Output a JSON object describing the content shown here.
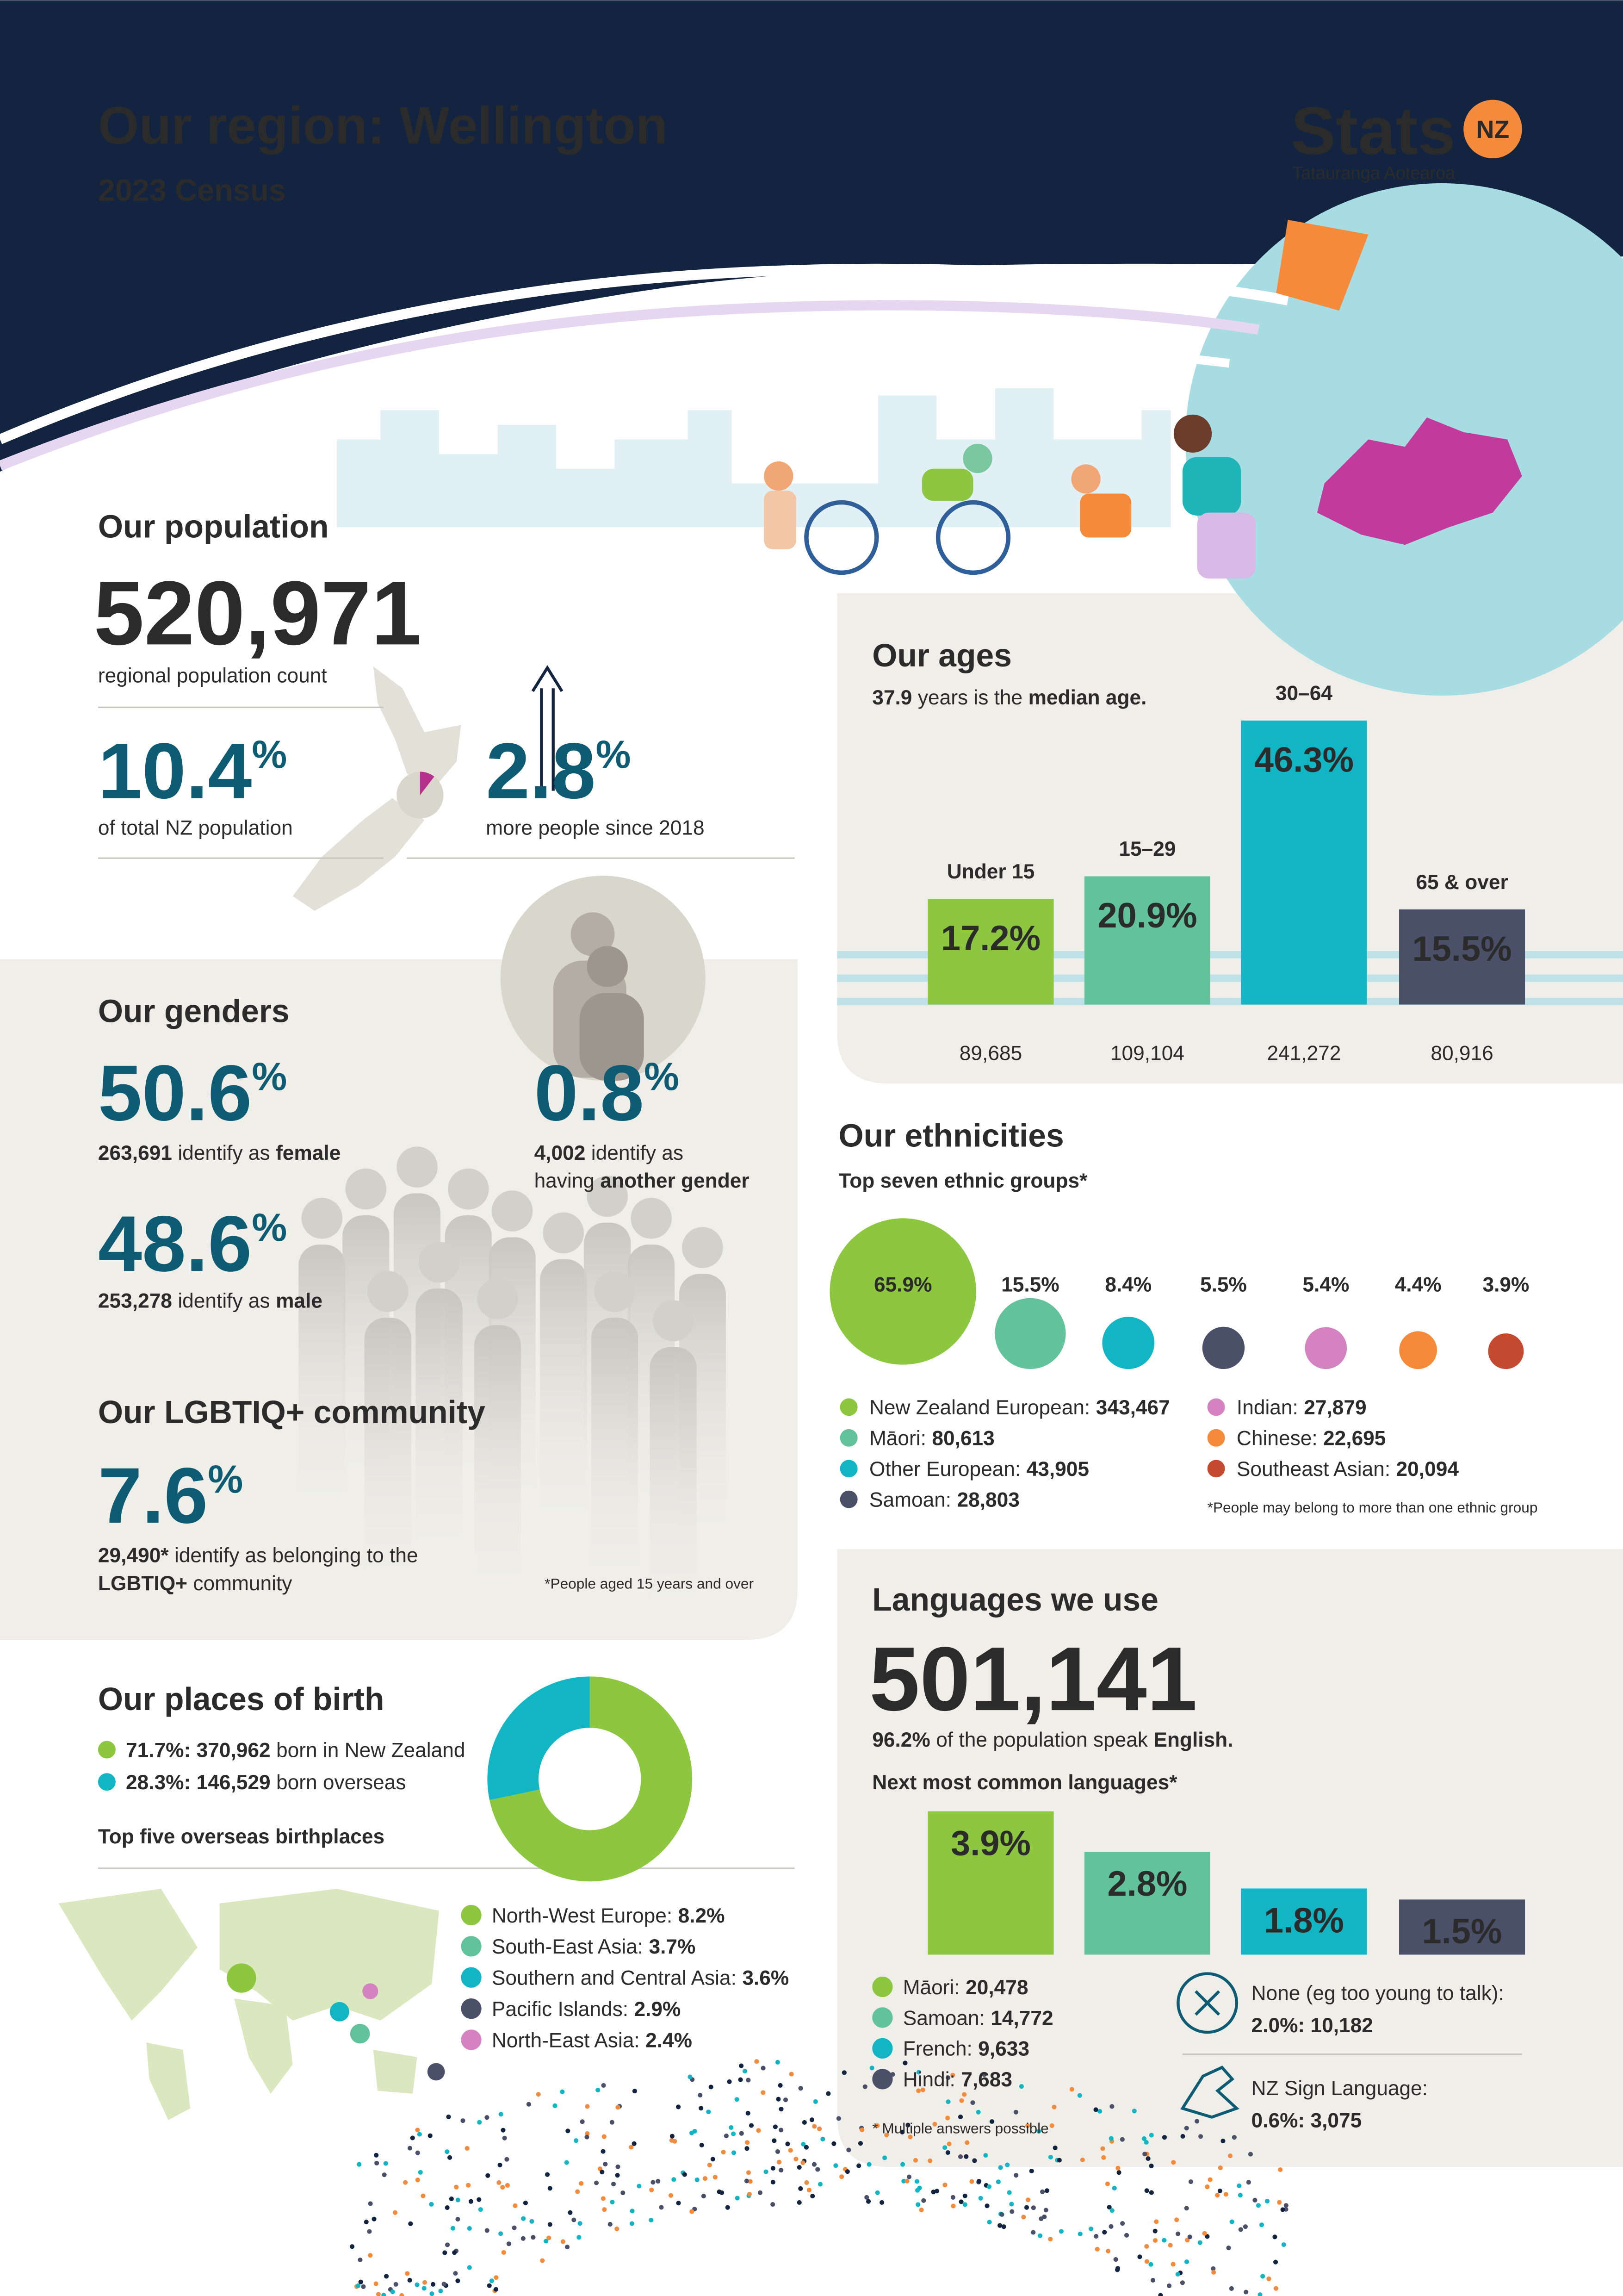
{
  "header": {
    "title": "Our region: Wellington",
    "subtitle": "2023 Census",
    "logo": "Stats",
    "logo_badge": "NZ",
    "logo_tagline": "Tatauranga Aotearoa"
  },
  "population": {
    "heading": "Our population",
    "count": "520,971",
    "count_label": "regional population count",
    "share": 10.4,
    "share_unit": "%",
    "share_label": "of total NZ population",
    "growth": 2.8,
    "growth_unit": "%",
    "growth_label": "more people since 2018",
    "share_color": "#b5318c"
  },
  "genders": {
    "heading": "Our genders",
    "female": {
      "percent": 50.6,
      "unit": "%",
      "count": "263,691",
      "text": "identify as",
      "term": "female"
    },
    "male": {
      "percent": 48.6,
      "unit": "%",
      "count": "253,278",
      "text": "identify as",
      "term": "male"
    },
    "another": {
      "percent": 0.8,
      "unit": "%",
      "count": "4,002",
      "text": "identify as",
      "text2": "having",
      "term": "another gender"
    }
  },
  "lgbtiq": {
    "heading": "Our LGBTIQ+ community",
    "percent": 7.6,
    "unit": "%",
    "count": "29,490*",
    "text": "identify as belonging to the",
    "term": "LGBTIQ+",
    "text2": "community",
    "note": "*People aged 15 years and over"
  },
  "birthplaces": {
    "heading": "Our places of birth",
    "type": "donut",
    "values": [
      71.7,
      28.3
    ],
    "colors": [
      "#8dc63f",
      "#12b5c4"
    ],
    "labels": [
      "71.7%: 370,962",
      "28.3%: 146,529"
    ],
    "texts": [
      "born in New Zealand",
      "born overseas"
    ],
    "top_heading": "Top five overseas birthplaces",
    "top": {
      "names": [
        "North-West Europe:",
        "South-East Asia:",
        "Southern and Central Asia:",
        "Pacific Islands:",
        "North-East Asia:"
      ],
      "values": [
        8.2,
        3.7,
        3.6,
        2.9,
        2.4
      ],
      "value_labels": [
        "8.2%",
        "3.7%",
        "3.6%",
        "2.9%",
        "2.4%"
      ],
      "colors": [
        "#8dc63f",
        "#62c29b",
        "#12b5c4",
        "#4b5069",
        "#d583c0"
      ]
    }
  },
  "ages": {
    "heading": "Our ages",
    "median_value": "37.9",
    "median_text": "years is the",
    "median_term": "median age.",
    "type": "bar",
    "categories": [
      "Under 15",
      "15–29",
      "30–64",
      "65 & over"
    ],
    "values": [
      17.2,
      20.9,
      46.3,
      15.5
    ],
    "value_labels": [
      "17.2%",
      "20.9%",
      "46.3%",
      "15.5%"
    ],
    "counts": [
      "89,685",
      "109,104",
      "241,272",
      "80,916"
    ],
    "colors": [
      "#8dc63f",
      "#62c29b",
      "#12b5c4",
      "#4b5069"
    ]
  },
  "ethnicities": {
    "heading": "Our ethnicities",
    "subtitle": "Top seven ethnic groups*",
    "type": "bubble",
    "categories": [
      "New Zealand European:",
      "Māori:",
      "Other European:",
      "Samoan:",
      "Indian:",
      "Chinese:",
      "Southeast Asian:"
    ],
    "counts": [
      "343,467",
      "80,613",
      "43,905",
      "28,803",
      "27,879",
      "22,695",
      "20,094"
    ],
    "values": [
      65.9,
      15.5,
      8.4,
      5.5,
      5.4,
      4.4,
      3.9
    ],
    "value_labels": [
      "65.9%",
      "15.5%",
      "8.4%",
      "5.5%",
      "5.4%",
      "4.4%",
      "3.9%"
    ],
    "colors": [
      "#8dc63f",
      "#62c29b",
      "#12b5c4",
      "#4b5069",
      "#d583c0",
      "#f58a3a",
      "#c3492f"
    ],
    "note": "*People may belong to more than one ethnic group"
  },
  "languages": {
    "heading": "Languages we use",
    "english_count": "501,141",
    "english_percent": "96.2%",
    "english_text": "of the population speak",
    "english_term": "English.",
    "next_heading": "Next most common languages*",
    "type": "bar",
    "labels": [
      "Māori:",
      "Samoan:",
      "French:",
      "Hindi:"
    ],
    "counts": [
      "20,478",
      "14,772",
      "9,633",
      "7,683"
    ],
    "values": [
      3.9,
      2.8,
      1.8,
      1.5
    ],
    "value_labels": [
      "3.9%",
      "2.8%",
      "1.8%",
      "1.5%"
    ],
    "colors": [
      "#8dc63f",
      "#62c29b",
      "#12b5c4",
      "#4b5069"
    ],
    "note": "* Multiple answers possible",
    "others": [
      {
        "label": "None (eg too young to talk):",
        "value": "2.0%: 10,182"
      },
      {
        "label": "NZ Sign Language:",
        "value": "0.6%: 3,075"
      }
    ]
  }
}
